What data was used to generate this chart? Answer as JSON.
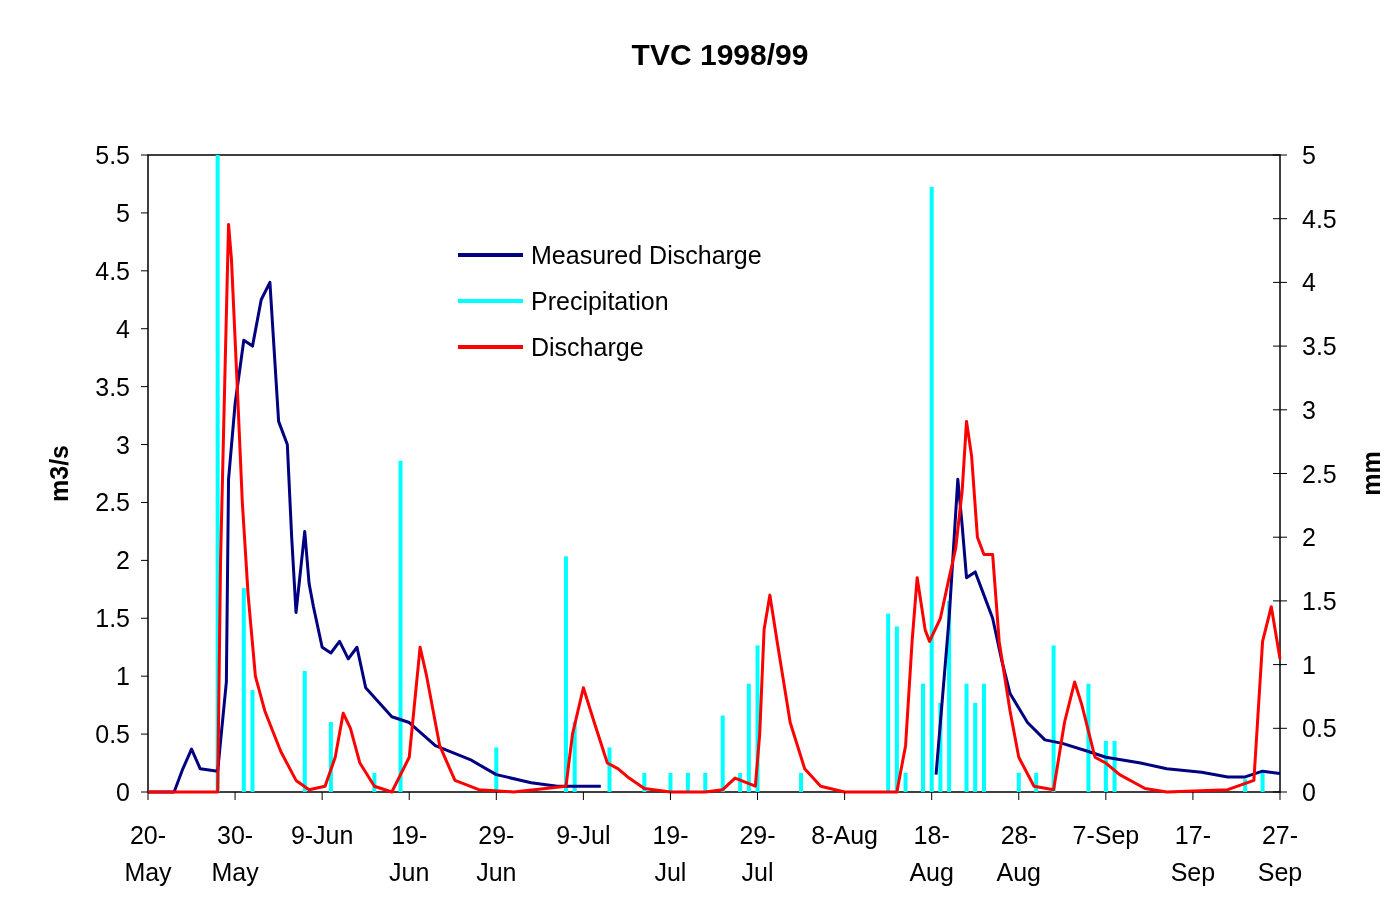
{
  "chart_data": {
    "type": "line",
    "title": "TVC 1998/99",
    "ylabel": "m3/s",
    "y2label": "mm",
    "xlim": [
      "1998-05-20",
      "1998-09-27"
    ],
    "xticks": [
      {
        "value": "1998-05-20",
        "label": "20-May"
      },
      {
        "value": "1998-05-30",
        "label": "30-May"
      },
      {
        "value": "1998-06-09",
        "label": "9-Jun"
      },
      {
        "value": "1998-06-19",
        "label": "19-Jun"
      },
      {
        "value": "1998-06-29",
        "label": "29-Jun"
      },
      {
        "value": "1998-07-09",
        "label": "9-Jul"
      },
      {
        "value": "1998-07-19",
        "label": "19-Jul"
      },
      {
        "value": "1998-07-29",
        "label": "29-Jul"
      },
      {
        "value": "1998-08-08",
        "label": "8-Aug"
      },
      {
        "value": "1998-08-18",
        "label": "18-Aug"
      },
      {
        "value": "1998-08-28",
        "label": "28-Aug"
      },
      {
        "value": "1998-09-07",
        "label": "7-Sep"
      },
      {
        "value": "1998-09-17",
        "label": "17-Sep"
      },
      {
        "value": "1998-09-27",
        "label": "27-Sep"
      }
    ],
    "ylim": [
      0,
      5.5
    ],
    "yticks": [
      0,
      0.5,
      1,
      1.5,
      2,
      2.5,
      3,
      3.5,
      4,
      4.5,
      5,
      5.5
    ],
    "y2lim": [
      0,
      5
    ],
    "y2ticks": [
      0,
      0.5,
      1,
      1.5,
      2,
      2.5,
      3,
      3.5,
      4,
      4.5,
      5
    ],
    "grid": false,
    "legend": "top",
    "line_style": "solid",
    "marker": "none",
    "series": [
      {
        "name": "Measured Discharge",
        "color": "#000080",
        "x": [
          "1998-05-20",
          "1998-05-23",
          "1998-05-24",
          "1998-05-25",
          "1998-05-26",
          "1998-05-28",
          "1998-05-29",
          "1998-05-29T06:00",
          "1998-05-30",
          "1998-05-31",
          "1998-06-01",
          "1998-06-02",
          "1998-06-03",
          "1998-06-04",
          "1998-06-05",
          "1998-06-05T12:00",
          "1998-06-06",
          "1998-06-07",
          "1998-06-07T12:00",
          "1998-06-08",
          "1998-06-09",
          "1998-06-10",
          "1998-06-11",
          "1998-06-12",
          "1998-06-13",
          "1998-06-14",
          "1998-06-17",
          "1998-06-19",
          "1998-06-22",
          "1998-06-26",
          "1998-06-29",
          "1998-07-03",
          "1998-07-06",
          "1998-07-11",
          "1998-07-12",
          "1998-08-18T12:00",
          "1998-08-19",
          "1998-08-20",
          "1998-08-21",
          "1998-08-21T12:00",
          "1998-08-22",
          "1998-08-23",
          "1998-08-24",
          "1998-08-25",
          "1998-08-26",
          "1998-08-27",
          "1998-08-29",
          "1998-08-31",
          "1998-09-02",
          "1998-09-05",
          "1998-09-07",
          "1998-09-11",
          "1998-09-14",
          "1998-09-18",
          "1998-09-21",
          "1998-09-23",
          "1998-09-25",
          "1998-09-27"
        ],
        "values": [
          0,
          0,
          0.2,
          0.37,
          0.2,
          0.18,
          0.95,
          2.7,
          3.35,
          3.9,
          3.85,
          4.25,
          4.4,
          3.2,
          3.0,
          2.2,
          1.55,
          2.25,
          1.8,
          1.6,
          1.25,
          1.2,
          1.3,
          1.15,
          1.25,
          0.9,
          0.65,
          0.6,
          0.4,
          0.28,
          0.15,
          0.08,
          0.05,
          0.05,
          null,
          0.15,
          0.6,
          1.5,
          2.7,
          2.3,
          1.85,
          1.9,
          1.7,
          1.5,
          1.15,
          0.85,
          0.6,
          0.45,
          0.42,
          0.35,
          0.3,
          0.25,
          0.2,
          0.17,
          0.13,
          0.13,
          0.18,
          0.16
        ]
      },
      {
        "name": "Precipitation",
        "color": "#00ffff",
        "type": "bar",
        "axis": "y2",
        "x": [
          "1998-05-28",
          "1998-05-31",
          "1998-06-01",
          "1998-06-07",
          "1998-06-10",
          "1998-06-15",
          "1998-06-18",
          "1998-06-29",
          "1998-07-07",
          "1998-07-08",
          "1998-07-12",
          "1998-07-16",
          "1998-07-19",
          "1998-07-21",
          "1998-07-23",
          "1998-07-25",
          "1998-07-27",
          "1998-07-28",
          "1998-07-29",
          "1998-08-03",
          "1998-08-13",
          "1998-08-14",
          "1998-08-15",
          "1998-08-17",
          "1998-08-18",
          "1998-08-19",
          "1998-08-20",
          "1998-08-22",
          "1998-08-23",
          "1998-08-24",
          "1998-08-28",
          "1998-08-30",
          "1998-09-01",
          "1998-09-05",
          "1998-09-07",
          "1998-09-08",
          "1998-09-23",
          "1998-09-25"
        ],
        "values": [
          5.0,
          1.6,
          0.8,
          0.95,
          0.55,
          0.15,
          2.6,
          0.35,
          1.85,
          0.55,
          0.35,
          0.15,
          0.15,
          0.15,
          0.15,
          0.6,
          0.15,
          0.85,
          1.15,
          0.15,
          1.4,
          1.3,
          0.15,
          0.85,
          4.75,
          0.7,
          1.5,
          0.85,
          0.7,
          0.85,
          0.15,
          0.15,
          1.15,
          0.85,
          0.4,
          0.4,
          0.1,
          0.15
        ]
      },
      {
        "name": "Discharge",
        "color": "#ff0000",
        "x": [
          "1998-05-20",
          "1998-05-28",
          "1998-05-28T08:00",
          "1998-05-28T20:00",
          "1998-05-29T06:00",
          "1998-05-29T14:00",
          "1998-05-30T06:00",
          "1998-05-30T20:00",
          "1998-05-31T12:00",
          "1998-06-01T08:00",
          "1998-06-02T10:00",
          "1998-06-04T06:00",
          "1998-06-06",
          "1998-06-07T12:00",
          "1998-06-09T08:00",
          "1998-06-10T12:00",
          "1998-06-11T10:00",
          "1998-06-12T06:00",
          "1998-06-13T08:00",
          "1998-06-15",
          "1998-06-17",
          "1998-06-19",
          "1998-06-20T06:00",
          "1998-06-21",
          "1998-06-22T12:00",
          "1998-06-24T06:00",
          "1998-06-27",
          "1998-07-01",
          "1998-07-07",
          "1998-07-07T18:00",
          "1998-07-09",
          "1998-07-10T06:00",
          "1998-07-11T18:00",
          "1998-07-13",
          "1998-07-14T06:00",
          "1998-07-16",
          "1998-07-19",
          "1998-07-23",
          "1998-07-25",
          "1998-07-26T10:00",
          "1998-07-28T18:00",
          "1998-07-29T06:00",
          "1998-07-29T18:00",
          "1998-07-30T10:00",
          "1998-07-31T06:00",
          "1998-08-01T18:00",
          "1998-08-03T10:00",
          "1998-08-05T06:00",
          "1998-08-08",
          "1998-08-14",
          "1998-08-15",
          "1998-08-15T18:00",
          "1998-08-16T08:00",
          "1998-08-17T06:00",
          "1998-08-17T18:00",
          "1998-08-19",
          "1998-08-20",
          "1998-08-20T18:00",
          "1998-08-21T12:00",
          "1998-08-22",
          "1998-08-22T14:00",
          "1998-08-23T06:00",
          "1998-08-24",
          "1998-08-25",
          "1998-08-25T18:00",
          "1998-08-27",
          "1998-08-28",
          "1998-08-29T18:00",
          "1998-09-01",
          "1998-09-02T06:00",
          "1998-09-03T10:00",
          "1998-09-04T06:00",
          "1998-09-05T18:00",
          "1998-09-07",
          "1998-09-08T14:00",
          "1998-09-11T12:00",
          "1998-09-14",
          "1998-09-21",
          "1998-09-24",
          "1998-09-25",
          "1998-09-26",
          "1998-09-27"
        ],
        "values": [
          0,
          0,
          2.0,
          3.6,
          4.9,
          4.6,
          3.5,
          2.5,
          1.7,
          1.0,
          0.7,
          0.35,
          0.1,
          0.02,
          0.05,
          0.3,
          0.68,
          0.55,
          0.25,
          0.05,
          0,
          0.3,
          1.25,
          1.0,
          0.4,
          0.1,
          0.02,
          0,
          0.05,
          0.5,
          0.9,
          0.6,
          0.25,
          0.2,
          0.12,
          0.03,
          0,
          0,
          0.02,
          0.12,
          0.05,
          0.5,
          1.4,
          1.7,
          1.3,
          0.6,
          0.2,
          0.05,
          0,
          0,
          0.4,
          1.3,
          1.85,
          1.4,
          1.3,
          1.5,
          1.85,
          2.1,
          2.6,
          3.2,
          2.9,
          2.2,
          2.05,
          2.05,
          1.3,
          0.7,
          0.3,
          0.05,
          0.02,
          0.6,
          0.95,
          0.75,
          0.3,
          0.25,
          0.15,
          0.03,
          0,
          0.02,
          0.1,
          1.3,
          1.6,
          1.15
        ]
      }
    ]
  }
}
